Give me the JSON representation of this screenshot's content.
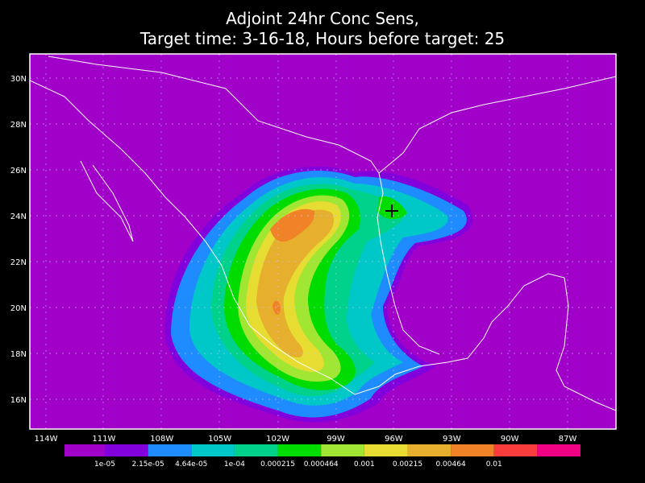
{
  "title": [
    "Adjoint 24hr Conc Sens,",
    "Target time: 3-16-18, Hours before target: 25"
  ],
  "lat_labels": [
    "30N",
    "28N",
    "26N",
    "24N",
    "22N",
    "20N",
    "18N",
    "16N"
  ],
  "lon_labels": [
    "114W",
    "111W",
    "108W",
    "105W",
    "102W",
    "99W",
    "96W",
    "93W",
    "90W",
    "87W"
  ],
  "legend": {
    "colors": [
      "#a000c8",
      "#8200dc",
      "#1e8cff",
      "#00c8c8",
      "#00d28c",
      "#00dc00",
      "#a0e632",
      "#e6dc32",
      "#e6af2d",
      "#f08228",
      "#fa3c3c",
      "#f00082"
    ],
    "labels": [
      "1e-05",
      "2.15e-05",
      "4.64e-05",
      "1e-04",
      "0.000215",
      "0.000464",
      "0.001",
      "0.00215",
      "0.00464",
      "0.01"
    ]
  }
}
